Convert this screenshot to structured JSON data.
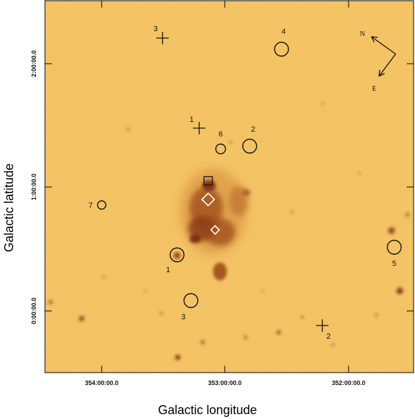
{
  "axes": {
    "xlabel": "Galactic longitude",
    "ylabel": "Galactic latitude",
    "xticks": [
      "354:00:00.0",
      "353:00:00.0",
      "352:00:00.0"
    ],
    "yticks": [
      "2:00:00.0",
      "1:00:00.0",
      "0:00:00.0"
    ]
  },
  "compass": {
    "north": "N",
    "east": "E"
  },
  "circle_labels": [
    "1",
    "2",
    "3",
    "4",
    "5",
    "6",
    "7"
  ],
  "cross_labels": [
    "1",
    "2",
    "3"
  ],
  "colors": {
    "background": "#f6c565",
    "frame": "#000000",
    "nebula": "#8a3a12"
  }
}
